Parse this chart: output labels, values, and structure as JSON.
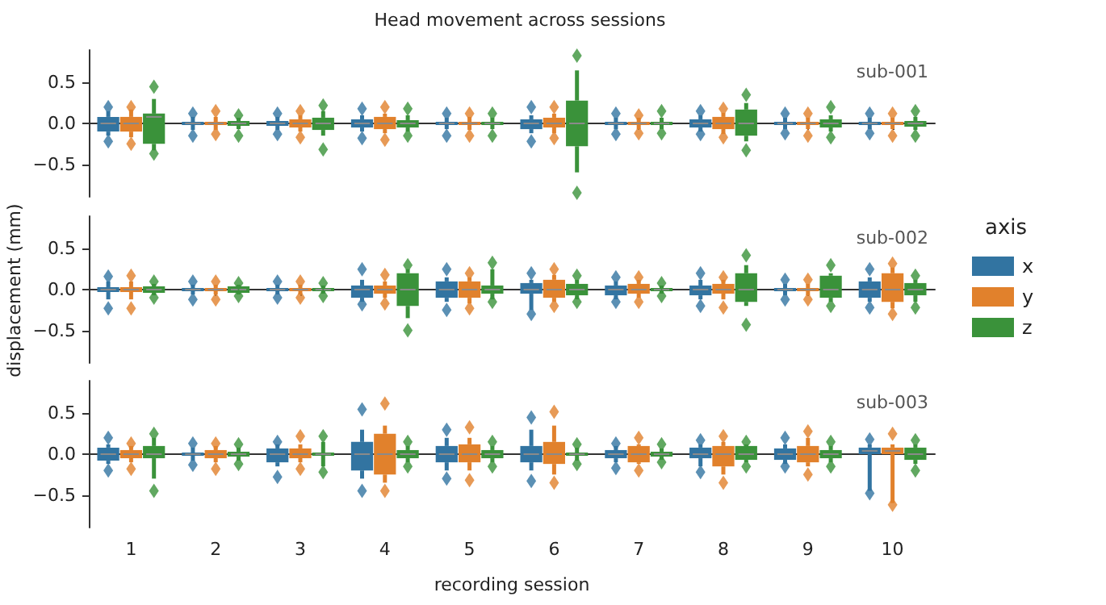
{
  "chart_data": [
    {
      "type": "box",
      "title": "Head movement across sessions",
      "annotations": [
        "sub-001"
      ],
      "categories": [
        "1",
        "2",
        "3",
        "4",
        "5",
        "6",
        "7",
        "8",
        "9",
        "10"
      ],
      "ylim": [
        -0.9,
        0.9
      ],
      "yticks": [
        {
          "value": -0.5,
          "label": "−0.5"
        },
        {
          "value": 0,
          "label": "0.0"
        },
        {
          "value": 0.5,
          "label": "0.5"
        }
      ],
      "tick_labels": "y",
      "series": [
        {
          "color": "#3274a1",
          "boxes": [
            {
              "low": -0.15,
              "q1": -0.1,
              "median": 0,
              "q3": 0.08,
              "high": 0.15,
              "outliers": [
                -0.22,
                0.2
              ]
            },
            {
              "low": -0.08,
              "q1": -0.02,
              "median": 0,
              "q3": 0.02,
              "high": 0.08,
              "outliers": [
                -0.15,
                0.12
              ]
            },
            {
              "low": -0.08,
              "q1": -0.03,
              "median": 0,
              "q3": 0.03,
              "high": 0.08,
              "outliers": [
                -0.13,
                0.12
              ]
            },
            {
              "low": -0.1,
              "q1": -0.05,
              "median": 0,
              "q3": 0.05,
              "high": 0.1,
              "outliers": [
                -0.18,
                0.18
              ]
            },
            {
              "low": -0.07,
              "q1": -0.02,
              "median": 0,
              "q3": 0.02,
              "high": 0.07,
              "outliers": [
                -0.15,
                0.12
              ]
            },
            {
              "low": -0.12,
              "q1": -0.07,
              "median": 0,
              "q3": 0.05,
              "high": 0.1,
              "outliers": [
                -0.22,
                0.2
              ]
            },
            {
              "low": -0.07,
              "q1": -0.02,
              "median": 0,
              "q3": 0.02,
              "high": 0.07,
              "outliers": [
                -0.13,
                0.12
              ]
            },
            {
              "low": -0.1,
              "q1": -0.05,
              "median": 0,
              "q3": 0.05,
              "high": 0.1,
              "outliers": [
                -0.13,
                0.15
              ]
            },
            {
              "low": -0.07,
              "q1": -0.02,
              "median": 0,
              "q3": 0.02,
              "high": 0.07,
              "outliers": [
                -0.12,
                0.12
              ]
            },
            {
              "low": -0.07,
              "q1": -0.02,
              "median": 0,
              "q3": 0.02,
              "high": 0.07,
              "outliers": [
                -0.12,
                0.12
              ]
            }
          ]
        },
        {
          "color": "#e1812c",
          "boxes": [
            {
              "low": -0.17,
              "q1": -0.1,
              "median": 0,
              "q3": 0.08,
              "high": 0.17,
              "outliers": [
                -0.25,
                0.2
              ]
            },
            {
              "low": -0.08,
              "q1": -0.02,
              "median": 0,
              "q3": 0.02,
              "high": 0.08,
              "outliers": [
                -0.13,
                0.15
              ]
            },
            {
              "low": -0.1,
              "q1": -0.05,
              "median": 0,
              "q3": 0.05,
              "high": 0.1,
              "outliers": [
                -0.17,
                0.15
              ]
            },
            {
              "low": -0.12,
              "q1": -0.07,
              "median": 0,
              "q3": 0.08,
              "high": 0.12,
              "outliers": [
                -0.2,
                0.2
              ]
            },
            {
              "low": -0.08,
              "q1": -0.02,
              "median": 0,
              "q3": 0.02,
              "high": 0.08,
              "outliers": [
                -0.15,
                0.12
              ]
            },
            {
              "low": -0.12,
              "q1": -0.05,
              "median": 0,
              "q3": 0.07,
              "high": 0.12,
              "outliers": [
                -0.18,
                0.2
              ]
            },
            {
              "low": -0.07,
              "q1": -0.02,
              "median": 0,
              "q3": 0.02,
              "high": 0.07,
              "outliers": [
                -0.12,
                0.1
              ]
            },
            {
              "low": -0.13,
              "q1": -0.07,
              "median": 0,
              "q3": 0.08,
              "high": 0.13,
              "outliers": [
                -0.17,
                0.18
              ]
            },
            {
              "low": -0.07,
              "q1": -0.02,
              "median": 0,
              "q3": 0.02,
              "high": 0.07,
              "outliers": [
                -0.15,
                0.12
              ]
            },
            {
              "low": -0.07,
              "q1": -0.02,
              "median": 0,
              "q3": 0.02,
              "high": 0.07,
              "outliers": [
                -0.15,
                0.12
              ]
            }
          ]
        },
        {
          "color": "#3a923a",
          "boxes": [
            {
              "low": -0.33,
              "q1": -0.25,
              "median": 0.08,
              "q3": 0.12,
              "high": 0.3,
              "outliers": [
                -0.37,
                0.45
              ]
            },
            {
              "low": -0.07,
              "q1": -0.03,
              "median": 0,
              "q3": 0.03,
              "high": 0.07,
              "outliers": [
                -0.15,
                0.1
              ]
            },
            {
              "low": -0.15,
              "q1": -0.08,
              "median": 0,
              "q3": 0.07,
              "high": 0.15,
              "outliers": [
                -0.32,
                0.22
              ]
            },
            {
              "low": -0.1,
              "q1": -0.05,
              "median": 0,
              "q3": 0.04,
              "high": 0.1,
              "outliers": [
                -0.15,
                0.18
              ]
            },
            {
              "low": -0.07,
              "q1": -0.02,
              "median": 0,
              "q3": 0.02,
              "high": 0.07,
              "outliers": [
                -0.15,
                0.12
              ]
            },
            {
              "low": -0.6,
              "q1": -0.28,
              "median": 0,
              "q3": 0.28,
              "high": 0.65,
              "outliers": [
                -0.85,
                0.83
              ]
            },
            {
              "low": -0.07,
              "q1": -0.02,
              "median": 0,
              "q3": 0.02,
              "high": 0.07,
              "outliers": [
                -0.12,
                0.15
              ]
            },
            {
              "low": -0.22,
              "q1": -0.15,
              "median": 0,
              "q3": 0.17,
              "high": 0.25,
              "outliers": [
                -0.33,
                0.35
              ]
            },
            {
              "low": -0.1,
              "q1": -0.05,
              "median": 0,
              "q3": 0.05,
              "high": 0.1,
              "outliers": [
                -0.17,
                0.2
              ]
            },
            {
              "low": -0.08,
              "q1": -0.04,
              "median": 0,
              "q3": 0.03,
              "high": 0.08,
              "outliers": [
                -0.15,
                0.15
              ]
            }
          ]
        }
      ]
    },
    {
      "type": "box",
      "ylabel": "displacement (mm)",
      "legend": "right",
      "legend_title": "axis",
      "annotations": [
        "sub-002"
      ],
      "categories": [
        "1",
        "2",
        "3",
        "4",
        "5",
        "6",
        "7",
        "8",
        "9",
        "10"
      ],
      "ylim": [
        -0.9,
        0.9
      ],
      "yticks": [
        {
          "value": -0.5,
          "label": "−0.5"
        },
        {
          "value": 0,
          "label": "0.0"
        },
        {
          "value": 0.5,
          "label": "0.5"
        }
      ],
      "tick_labels": "y",
      "series": [
        {
          "name": "x",
          "color": "#3274a1",
          "boxes": [
            {
              "low": -0.12,
              "q1": -0.03,
              "median": 0,
              "q3": 0.03,
              "high": 0.1,
              "outliers": [
                -0.23,
                0.16
              ]
            },
            {
              "low": -0.06,
              "q1": -0.02,
              "median": 0,
              "q3": 0.02,
              "high": 0.06,
              "outliers": [
                -0.12,
                0.1
              ]
            },
            {
              "low": -0.06,
              "q1": -0.02,
              "median": 0,
              "q3": 0.02,
              "high": 0.06,
              "outliers": [
                -0.1,
                0.1
              ]
            },
            {
              "low": -0.15,
              "q1": -0.1,
              "median": 0,
              "q3": 0.05,
              "high": 0.12,
              "outliers": [
                -0.18,
                0.25
              ]
            },
            {
              "low": -0.15,
              "q1": -0.1,
              "median": 0,
              "q3": 0.1,
              "high": 0.15,
              "outliers": [
                -0.25,
                0.25
              ]
            },
            {
              "low": -0.25,
              "q1": -0.05,
              "median": 0,
              "q3": 0.08,
              "high": 0.12,
              "outliers": [
                -0.3,
                0.2
              ]
            },
            {
              "low": -0.12,
              "q1": -0.07,
              "median": 0,
              "q3": 0.05,
              "high": 0.1,
              "outliers": [
                -0.15,
                0.15
              ]
            },
            {
              "low": -0.12,
              "q1": -0.07,
              "median": 0,
              "q3": 0.05,
              "high": 0.12,
              "outliers": [
                -0.2,
                0.2
              ]
            },
            {
              "low": -0.07,
              "q1": -0.02,
              "median": 0,
              "q3": 0.02,
              "high": 0.07,
              "outliers": [
                -0.12,
                0.12
              ]
            },
            {
              "low": -0.15,
              "q1": -0.1,
              "median": 0,
              "q3": 0.1,
              "high": 0.15,
              "outliers": [
                -0.22,
                0.25
              ]
            }
          ]
        },
        {
          "name": "y",
          "color": "#e1812c",
          "boxes": [
            {
              "low": -0.12,
              "q1": -0.03,
              "median": 0,
              "q3": 0.03,
              "high": 0.1,
              "outliers": [
                -0.23,
                0.17
              ]
            },
            {
              "low": -0.06,
              "q1": -0.02,
              "median": 0,
              "q3": 0.02,
              "high": 0.06,
              "outliers": [
                -0.12,
                0.1
              ]
            },
            {
              "low": -0.06,
              "q1": -0.02,
              "median": 0,
              "q3": 0.02,
              "high": 0.06,
              "outliers": [
                -0.1,
                0.1
              ]
            },
            {
              "low": -0.1,
              "q1": -0.05,
              "median": 0,
              "q3": 0.05,
              "high": 0.1,
              "outliers": [
                -0.17,
                0.18
              ]
            },
            {
              "low": -0.17,
              "q1": -0.1,
              "median": 0,
              "q3": 0.1,
              "high": 0.15,
              "outliers": [
                -0.23,
                0.2
              ]
            },
            {
              "low": -0.15,
              "q1": -0.1,
              "median": 0,
              "q3": 0.12,
              "high": 0.18,
              "outliers": [
                -0.2,
                0.25
              ]
            },
            {
              "low": -0.1,
              "q1": -0.05,
              "median": 0,
              "q3": 0.07,
              "high": 0.12,
              "outliers": [
                -0.15,
                0.15
              ]
            },
            {
              "low": -0.12,
              "q1": -0.05,
              "median": 0,
              "q3": 0.07,
              "high": 0.12,
              "outliers": [
                -0.22,
                0.15
              ]
            },
            {
              "low": -0.07,
              "q1": -0.02,
              "median": 0,
              "q3": 0.02,
              "high": 0.07,
              "outliers": [
                -0.12,
                0.12
              ]
            },
            {
              "low": -0.23,
              "q1": -0.15,
              "median": 0,
              "q3": 0.2,
              "high": 0.27,
              "outliers": [
                -0.3,
                0.32
              ]
            }
          ]
        },
        {
          "name": "z",
          "color": "#3a923a",
          "boxes": [
            {
              "low": -0.07,
              "q1": -0.04,
              "median": 0,
              "q3": 0.04,
              "high": 0.07,
              "outliers": [
                -0.1,
                0.1
              ]
            },
            {
              "low": -0.06,
              "q1": -0.04,
              "median": 0,
              "q3": 0.04,
              "high": 0.06,
              "outliers": [
                -0.08,
                0.08
              ]
            },
            {
              "low": -0.05,
              "q1": -0.02,
              "median": 0,
              "q3": 0.02,
              "high": 0.05,
              "outliers": [
                -0.08,
                0.08
              ]
            },
            {
              "low": -0.35,
              "q1": -0.2,
              "median": 0,
              "q3": 0.2,
              "high": 0.25,
              "outliers": [
                -0.5,
                0.3
              ]
            },
            {
              "low": -0.12,
              "q1": -0.05,
              "median": 0,
              "q3": 0.05,
              "high": 0.25,
              "outliers": [
                -0.15,
                0.33
              ]
            },
            {
              "low": -0.12,
              "q1": -0.07,
              "median": 0,
              "q3": 0.07,
              "high": 0.12,
              "outliers": [
                -0.15,
                0.17
              ]
            },
            {
              "low": -0.05,
              "q1": -0.02,
              "median": 0,
              "q3": 0.02,
              "high": 0.05,
              "outliers": [
                -0.08,
                0.08
              ]
            },
            {
              "low": -0.2,
              "q1": -0.15,
              "median": 0,
              "q3": 0.2,
              "high": 0.3,
              "outliers": [
                -0.43,
                0.42
              ]
            },
            {
              "low": -0.15,
              "q1": -0.1,
              "median": 0,
              "q3": 0.17,
              "high": 0.2,
              "outliers": [
                -0.2,
                0.3
              ]
            },
            {
              "low": -0.15,
              "q1": -0.07,
              "median": 0,
              "q3": 0.08,
              "high": 0.12,
              "outliers": [
                -0.22,
                0.17
              ]
            }
          ]
        }
      ]
    },
    {
      "type": "box",
      "xlabel": "recording session",
      "annotations": [
        "sub-003"
      ],
      "categories": [
        "1",
        "2",
        "3",
        "4",
        "5",
        "6",
        "7",
        "8",
        "9",
        "10"
      ],
      "ylim": [
        -0.9,
        0.9
      ],
      "yticks": [
        {
          "value": -0.5,
          "label": "−0.5"
        },
        {
          "value": 0,
          "label": "0.0"
        },
        {
          "value": 0.5,
          "label": "0.5"
        }
      ],
      "series": [
        {
          "color": "#3274a1",
          "boxes": [
            {
              "low": -0.12,
              "q1": -0.08,
              "median": 0,
              "q3": 0.08,
              "high": 0.12,
              "outliers": [
                -0.2,
                0.2
              ]
            },
            {
              "low": -0.08,
              "q1": -0.02,
              "median": 0,
              "q3": 0.02,
              "high": 0.08,
              "outliers": [
                -0.13,
                0.13
              ]
            },
            {
              "low": -0.15,
              "q1": -0.1,
              "median": 0,
              "q3": 0.07,
              "high": 0.12,
              "outliers": [
                -0.28,
                0.15
              ]
            },
            {
              "low": -0.3,
              "q1": -0.2,
              "median": 0,
              "q3": 0.15,
              "high": 0.3,
              "outliers": [
                -0.45,
                0.55
              ]
            },
            {
              "low": -0.2,
              "q1": -0.1,
              "median": 0,
              "q3": 0.1,
              "high": 0.2,
              "outliers": [
                -0.3,
                0.3
              ]
            },
            {
              "low": -0.2,
              "q1": -0.1,
              "median": 0,
              "q3": 0.1,
              "high": 0.3,
              "outliers": [
                -0.33,
                0.45
              ]
            },
            {
              "low": -0.1,
              "q1": -0.05,
              "median": 0,
              "q3": 0.05,
              "high": 0.1,
              "outliers": [
                -0.17,
                0.13
              ]
            },
            {
              "low": -0.15,
              "q1": -0.05,
              "median": 0,
              "q3": 0.08,
              "high": 0.12,
              "outliers": [
                -0.22,
                0.17
              ]
            },
            {
              "low": -0.12,
              "q1": -0.07,
              "median": 0,
              "q3": 0.07,
              "high": 0.12,
              "outliers": [
                -0.15,
                0.2
              ]
            },
            {
              "low": -0.45,
              "q1": 0,
              "median": 0.04,
              "q3": 0.08,
              "high": 0.12,
              "outliers": [
                -0.48,
                0.18
              ]
            }
          ]
        },
        {
          "color": "#e1812c",
          "boxes": [
            {
              "low": -0.1,
              "q1": -0.05,
              "median": 0,
              "q3": 0.05,
              "high": 0.1,
              "outliers": [
                -0.18,
                0.13
              ]
            },
            {
              "low": -0.1,
              "q1": -0.05,
              "median": 0,
              "q3": 0.05,
              "high": 0.1,
              "outliers": [
                -0.18,
                0.13
              ]
            },
            {
              "low": -0.1,
              "q1": -0.05,
              "median": 0,
              "q3": 0.07,
              "high": 0.12,
              "outliers": [
                -0.18,
                0.22
              ]
            },
            {
              "low": -0.35,
              "q1": -0.25,
              "median": 0,
              "q3": 0.25,
              "high": 0.35,
              "outliers": [
                -0.45,
                0.62
              ]
            },
            {
              "low": -0.2,
              "q1": -0.1,
              "median": 0,
              "q3": 0.12,
              "high": 0.2,
              "outliers": [
                -0.32,
                0.33
              ]
            },
            {
              "low": -0.25,
              "q1": -0.12,
              "median": 0,
              "q3": 0.15,
              "high": 0.35,
              "outliers": [
                -0.35,
                0.52
              ]
            },
            {
              "low": -0.12,
              "q1": -0.1,
              "median": 0,
              "q3": 0.1,
              "high": 0.12,
              "outliers": [
                -0.2,
                0.2
              ]
            },
            {
              "low": -0.25,
              "q1": -0.15,
              "median": 0,
              "q3": 0.1,
              "high": 0.15,
              "outliers": [
                -0.35,
                0.22
              ]
            },
            {
              "low": -0.15,
              "q1": -0.1,
              "median": 0,
              "q3": 0.1,
              "high": 0.2,
              "outliers": [
                -0.25,
                0.28
              ]
            },
            {
              "low": -0.6,
              "q1": 0,
              "median": 0.04,
              "q3": 0.08,
              "high": 0.12,
              "outliers": [
                -0.62,
                0.25
              ]
            }
          ]
        },
        {
          "color": "#3a923a",
          "boxes": [
            {
              "low": -0.3,
              "q1": -0.05,
              "median": 0,
              "q3": 0.1,
              "high": 0.2,
              "outliers": [
                -0.45,
                0.25
              ]
            },
            {
              "low": -0.08,
              "q1": -0.03,
              "median": 0,
              "q3": 0.03,
              "high": 0.08,
              "outliers": [
                -0.12,
                0.12
              ]
            },
            {
              "low": -0.15,
              "q1": -0.02,
              "median": 0,
              "q3": 0.02,
              "high": 0.15,
              "outliers": [
                -0.22,
                0.22
              ]
            },
            {
              "low": -0.1,
              "q1": -0.05,
              "median": 0,
              "q3": 0.05,
              "high": 0.1,
              "outliers": [
                -0.15,
                0.15
              ]
            },
            {
              "low": -0.1,
              "q1": -0.05,
              "median": 0,
              "q3": 0.05,
              "high": 0.1,
              "outliers": [
                -0.15,
                0.15
              ]
            },
            {
              "low": -0.08,
              "q1": -0.02,
              "median": 0,
              "q3": 0.02,
              "high": 0.08,
              "outliers": [
                -0.12,
                0.12
              ]
            },
            {
              "low": -0.07,
              "q1": -0.03,
              "median": 0,
              "q3": 0.03,
              "high": 0.07,
              "outliers": [
                -0.1,
                0.12
              ]
            },
            {
              "low": -0.1,
              "q1": -0.07,
              "median": 0,
              "q3": 0.1,
              "high": 0.12,
              "outliers": [
                -0.15,
                0.15
              ]
            },
            {
              "low": -0.1,
              "q1": -0.05,
              "median": 0,
              "q3": 0.05,
              "high": 0.1,
              "outliers": [
                -0.15,
                0.15
              ]
            },
            {
              "low": -0.12,
              "q1": -0.07,
              "median": 0,
              "q3": 0.08,
              "high": 0.12,
              "outliers": [
                -0.2,
                0.17
              ]
            }
          ]
        }
      ]
    }
  ]
}
